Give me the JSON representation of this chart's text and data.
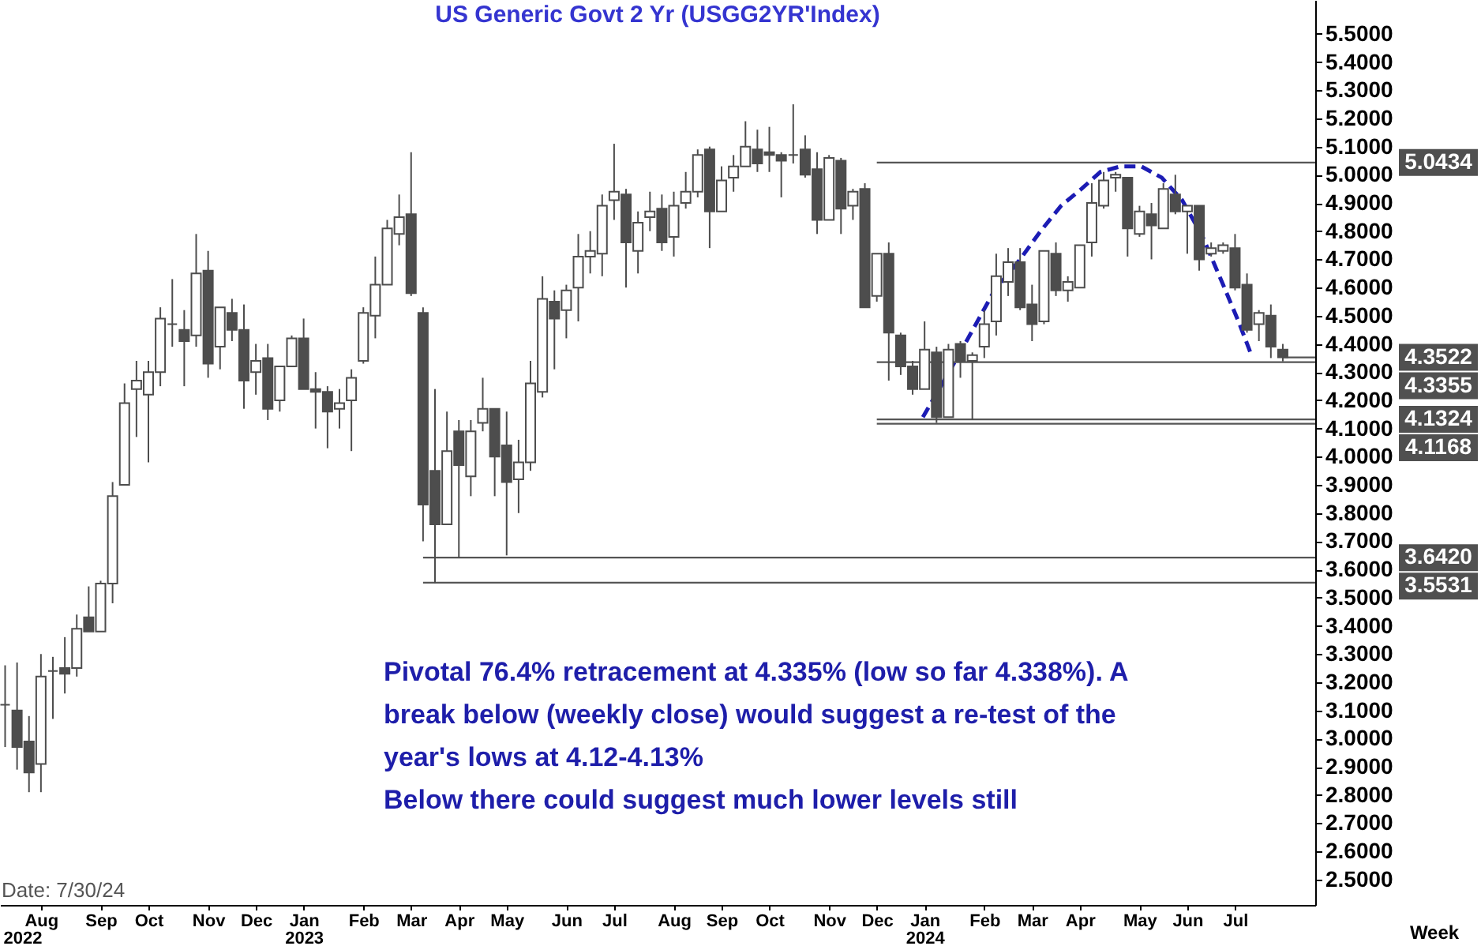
{
  "chart_data": {
    "type": "candlestick",
    "title": "US Generic Govt 2 Yr (USGG2YR'Index)",
    "xlabel": "Week",
    "color": "#4d4d4d",
    "legend": "right",
    "x": [
      "2022-07-11",
      "2022-07-18",
      "2022-07-25",
      "2022-08-01",
      "2022-08-08",
      "2022-08-15",
      "2022-08-22",
      "2022-08-29",
      "2022-09-05",
      "2022-09-12",
      "2022-09-19",
      "2022-09-26",
      "2022-10-03",
      "2022-10-10",
      "2022-10-17",
      "2022-10-24",
      "2022-10-31",
      "2022-11-07",
      "2022-11-14",
      "2022-11-21",
      "2022-11-28",
      "2022-12-05",
      "2022-12-12",
      "2022-12-19",
      "2022-12-26",
      "2023-01-02",
      "2023-01-09",
      "2023-01-16",
      "2023-01-23",
      "2023-01-30",
      "2023-02-06",
      "2023-02-13",
      "2023-02-20",
      "2023-02-27",
      "2023-03-06",
      "2023-03-13",
      "2023-03-20",
      "2023-03-27",
      "2023-04-03",
      "2023-04-10",
      "2023-04-17",
      "2023-04-24",
      "2023-05-01",
      "2023-05-08",
      "2023-05-15",
      "2023-05-22",
      "2023-05-29",
      "2023-06-05",
      "2023-06-12",
      "2023-06-19",
      "2023-06-26",
      "2023-07-03",
      "2023-07-10",
      "2023-07-17",
      "2023-07-24",
      "2023-07-31",
      "2023-08-07",
      "2023-08-14",
      "2023-08-21",
      "2023-08-28",
      "2023-09-04",
      "2023-09-11",
      "2023-09-18",
      "2023-09-25",
      "2023-10-02",
      "2023-10-09",
      "2023-10-16",
      "2023-10-23",
      "2023-10-30",
      "2023-11-06",
      "2023-11-13",
      "2023-11-20",
      "2023-11-27",
      "2023-12-04",
      "2023-12-11",
      "2023-12-18",
      "2023-12-25",
      "2024-01-01",
      "2024-01-08",
      "2024-01-15",
      "2024-01-22",
      "2024-01-29",
      "2024-02-05",
      "2024-02-12",
      "2024-02-19",
      "2024-02-26",
      "2024-03-04",
      "2024-03-11",
      "2024-03-18",
      "2024-03-25",
      "2024-04-01",
      "2024-04-08",
      "2024-04-15",
      "2024-04-22",
      "2024-04-29",
      "2024-05-06",
      "2024-05-13",
      "2024-05-20",
      "2024-05-27",
      "2024-06-03",
      "2024-06-10",
      "2024-06-17",
      "2024-06-24",
      "2024-07-01",
      "2024-07-08",
      "2024-07-15",
      "2024-07-22",
      "2024-07-29"
    ],
    "ohlc": [
      [
        3.12,
        3.26,
        2.97,
        3.12
      ],
      [
        3.1,
        3.27,
        2.89,
        2.97
      ],
      [
        2.99,
        3.08,
        2.81,
        2.88
      ],
      [
        2.91,
        3.3,
        2.81,
        3.22
      ],
      [
        3.24,
        3.29,
        3.07,
        3.24
      ],
      [
        3.25,
        3.36,
        3.16,
        3.23
      ],
      [
        3.25,
        3.44,
        3.22,
        3.39
      ],
      [
        3.43,
        3.54,
        3.38,
        3.38
      ],
      [
        3.38,
        3.56,
        3.38,
        3.55
      ],
      [
        3.55,
        3.91,
        3.48,
        3.86
      ],
      [
        3.9,
        4.26,
        3.9,
        4.19
      ],
      [
        4.24,
        4.34,
        4.07,
        4.27
      ],
      [
        4.22,
        4.34,
        3.98,
        4.3
      ],
      [
        4.3,
        4.53,
        4.25,
        4.49
      ],
      [
        4.47,
        4.63,
        4.39,
        4.47
      ],
      [
        4.45,
        4.52,
        4.25,
        4.41
      ],
      [
        4.43,
        4.79,
        4.39,
        4.65
      ],
      [
        4.66,
        4.73,
        4.28,
        4.33
      ],
      [
        4.39,
        4.53,
        4.31,
        4.53
      ],
      [
        4.51,
        4.56,
        4.41,
        4.45
      ],
      [
        4.45,
        4.54,
        4.17,
        4.27
      ],
      [
        4.3,
        4.4,
        4.22,
        4.34
      ],
      [
        4.35,
        4.4,
        4.13,
        4.17
      ],
      [
        4.2,
        4.32,
        4.16,
        4.32
      ],
      [
        4.32,
        4.43,
        4.32,
        4.42
      ],
      [
        4.42,
        4.49,
        4.24,
        4.24
      ],
      [
        4.24,
        4.3,
        4.1,
        4.23
      ],
      [
        4.23,
        4.25,
        4.03,
        4.16
      ],
      [
        4.17,
        4.24,
        4.1,
        4.19
      ],
      [
        4.2,
        4.31,
        4.02,
        4.28
      ],
      [
        4.34,
        4.53,
        4.33,
        4.51
      ],
      [
        4.5,
        4.71,
        4.42,
        4.61
      ],
      [
        4.61,
        4.84,
        4.61,
        4.81
      ],
      [
        4.79,
        4.93,
        4.75,
        4.85
      ],
      [
        4.86,
        5.08,
        4.57,
        4.58
      ],
      [
        4.51,
        4.53,
        3.7,
        3.83
      ],
      [
        3.95,
        4.24,
        3.55,
        3.76
      ],
      [
        3.76,
        4.16,
        3.76,
        4.02
      ],
      [
        4.09,
        4.13,
        3.64,
        3.97
      ],
      [
        3.93,
        4.13,
        3.86,
        4.09
      ],
      [
        4.12,
        4.28,
        4.09,
        4.17
      ],
      [
        4.17,
        4.17,
        3.86,
        4.0
      ],
      [
        4.04,
        4.16,
        3.65,
        3.91
      ],
      [
        3.92,
        4.06,
        3.8,
        3.98
      ],
      [
        3.98,
        4.34,
        3.95,
        4.26
      ],
      [
        4.23,
        4.64,
        4.21,
        4.56
      ],
      [
        4.55,
        4.59,
        4.31,
        4.49
      ],
      [
        4.52,
        4.61,
        4.42,
        4.59
      ],
      [
        4.6,
        4.79,
        4.48,
        4.71
      ],
      [
        4.71,
        4.8,
        4.65,
        4.73
      ],
      [
        4.72,
        4.93,
        4.64,
        4.89
      ],
      [
        4.91,
        5.11,
        4.84,
        4.94
      ],
      [
        4.93,
        4.95,
        4.6,
        4.76
      ],
      [
        4.73,
        4.87,
        4.65,
        4.83
      ],
      [
        4.85,
        4.94,
        4.8,
        4.87
      ],
      [
        4.88,
        4.93,
        4.73,
        4.76
      ],
      [
        4.78,
        4.94,
        4.71,
        4.89
      ],
      [
        4.9,
        5.01,
        4.88,
        4.94
      ],
      [
        4.94,
        5.09,
        4.92,
        5.07
      ],
      [
        5.09,
        5.1,
        4.74,
        4.87
      ],
      [
        4.87,
        5.03,
        4.87,
        4.98
      ],
      [
        4.99,
        5.07,
        4.94,
        5.03
      ],
      [
        5.03,
        5.19,
        5.03,
        5.1
      ],
      [
        5.09,
        5.16,
        5.01,
        5.04
      ],
      [
        5.08,
        5.17,
        5.01,
        5.07
      ],
      [
        5.07,
        5.08,
        4.92,
        5.05
      ],
      [
        5.07,
        5.25,
        5.04,
        5.07
      ],
      [
        5.09,
        5.14,
        4.99,
        5.0
      ],
      [
        5.02,
        5.08,
        4.79,
        4.84
      ],
      [
        4.84,
        5.07,
        4.84,
        5.06
      ],
      [
        5.05,
        5.06,
        4.79,
        4.88
      ],
      [
        4.89,
        4.95,
        4.84,
        4.94
      ],
      [
        4.95,
        4.97,
        4.53,
        4.53
      ],
      [
        4.57,
        4.72,
        4.55,
        4.72
      ],
      [
        4.72,
        4.76,
        4.27,
        4.44
      ],
      [
        4.43,
        4.44,
        4.29,
        4.32
      ],
      [
        4.32,
        4.34,
        4.22,
        4.24
      ],
      [
        4.24,
        4.48,
        4.24,
        4.38
      ],
      [
        4.37,
        4.39,
        4.12,
        4.14
      ],
      [
        4.14,
        4.4,
        4.14,
        4.38
      ],
      [
        4.4,
        4.41,
        4.28,
        4.34
      ],
      [
        4.34,
        4.37,
        4.13,
        4.36
      ],
      [
        4.39,
        4.52,
        4.35,
        4.47
      ],
      [
        4.48,
        4.72,
        4.43,
        4.64
      ],
      [
        4.62,
        4.74,
        4.57,
        4.69
      ],
      [
        4.69,
        4.74,
        4.52,
        4.53
      ],
      [
        4.54,
        4.61,
        4.41,
        4.47
      ],
      [
        4.48,
        4.73,
        4.47,
        4.73
      ],
      [
        4.72,
        4.76,
        4.57,
        4.59
      ],
      [
        4.59,
        4.64,
        4.55,
        4.62
      ],
      [
        4.6,
        4.75,
        4.6,
        4.75
      ],
      [
        4.76,
        4.97,
        4.71,
        4.9
      ],
      [
        4.89,
        5.01,
        4.88,
        4.98
      ],
      [
        4.99,
        5.01,
        4.94,
        5.0
      ],
      [
        4.99,
        4.99,
        4.71,
        4.81
      ],
      [
        4.79,
        4.89,
        4.78,
        4.87
      ],
      [
        4.86,
        4.9,
        4.7,
        4.82
      ],
      [
        4.81,
        4.97,
        4.81,
        4.95
      ],
      [
        4.93,
        5.0,
        4.86,
        4.87
      ],
      [
        4.87,
        4.89,
        4.72,
        4.89
      ],
      [
        4.89,
        4.89,
        4.66,
        4.7
      ],
      [
        4.72,
        4.76,
        4.71,
        4.74
      ],
      [
        4.73,
        4.76,
        4.72,
        4.75
      ],
      [
        4.74,
        4.79,
        4.59,
        4.6
      ],
      [
        4.61,
        4.65,
        4.44,
        4.45
      ],
      [
        4.47,
        4.52,
        4.41,
        4.51
      ],
      [
        4.5,
        4.54,
        4.35,
        4.39
      ],
      [
        4.38,
        4.4,
        4.338,
        4.3522
      ]
    ],
    "series": [
      {
        "type": "line",
        "line_style": "dashed",
        "color": "#1c1cb4",
        "x": [
          "2023-12-31",
          "2024-01-21",
          "2024-02-11",
          "2024-02-26",
          "2024-03-09",
          "2024-03-21",
          "2024-04-02",
          "2024-04-13",
          "2024-04-25",
          "2024-05-07",
          "2024-05-19",
          "2024-05-31",
          "2024-06-12",
          "2024-06-24",
          "2024-07-03",
          "2024-07-10"
        ],
        "values": [
          4.14,
          4.36,
          4.59,
          4.7,
          4.8,
          4.89,
          4.95,
          5.01,
          5.03,
          5.03,
          4.99,
          4.91,
          4.78,
          4.61,
          4.48,
          4.37
        ]
      },
      {
        "type": "line",
        "name": "5.0434",
        "color": "#555555",
        "x": [
          "2023-12-04",
          "2024-08-17"
        ],
        "values": [
          5.0434,
          5.0434
        ]
      },
      {
        "type": "line",
        "name": "4.3522",
        "color": "#555555",
        "x": [
          "2024-07-29",
          "2024-08-17"
        ],
        "values": [
          4.3522,
          4.3522
        ]
      },
      {
        "type": "line",
        "name": "4.3355",
        "color": "#555555",
        "x": [
          "2023-12-04",
          "2024-08-17"
        ],
        "values": [
          4.3355,
          4.3355
        ]
      },
      {
        "type": "line",
        "name": "4.1324",
        "color": "#555555",
        "x": [
          "2023-12-04",
          "2024-08-17"
        ],
        "values": [
          4.1324,
          4.1324
        ]
      },
      {
        "type": "line",
        "name": "4.1168",
        "color": "#555555",
        "x": [
          "2023-12-04",
          "2024-08-17"
        ],
        "values": [
          4.1168,
          4.1168
        ]
      },
      {
        "type": "line",
        "name": "3.6420",
        "color": "#555555",
        "x": [
          "2023-03-13",
          "2024-08-17"
        ],
        "values": [
          3.642,
          3.642
        ]
      },
      {
        "type": "line",
        "name": "3.5531",
        "color": "#555555",
        "x": [
          "2023-03-13",
          "2024-08-17"
        ],
        "values": [
          3.5531,
          3.5531
        ]
      }
    ],
    "xlim": [
      "2022-07-08",
      "2024-08-17"
    ],
    "ylim": [
      2.41,
      5.62
    ],
    "xticks": [
      {
        "value": "2022-08-01",
        "label": "Aug"
      },
      {
        "value": "2022-09-05",
        "label": "Sep"
      },
      {
        "value": "2022-10-03",
        "label": "Oct"
      },
      {
        "value": "2022-11-07",
        "label": "Nov"
      },
      {
        "value": "2022-12-05",
        "label": "Dec"
      },
      {
        "value": "2023-01-02",
        "label": "Jan"
      },
      {
        "value": "2023-02-06",
        "label": "Feb"
      },
      {
        "value": "2023-03-06",
        "label": "Mar"
      },
      {
        "value": "2023-04-03",
        "label": "Apr"
      },
      {
        "value": "2023-05-01",
        "label": "May"
      },
      {
        "value": "2023-06-05",
        "label": "Jun"
      },
      {
        "value": "2023-07-03",
        "label": "Jul"
      },
      {
        "value": "2023-08-07",
        "label": "Aug"
      },
      {
        "value": "2023-09-04",
        "label": "Sep"
      },
      {
        "value": "2023-10-02",
        "label": "Oct"
      },
      {
        "value": "2023-11-06",
        "label": "Nov"
      },
      {
        "value": "2023-12-04",
        "label": "Dec"
      },
      {
        "value": "2024-01-01",
        "label": "Jan"
      },
      {
        "value": "2024-02-05",
        "label": "Feb"
      },
      {
        "value": "2024-03-04",
        "label": "Mar"
      },
      {
        "value": "2024-04-01",
        "label": "Apr"
      },
      {
        "value": "2024-05-06",
        "label": "May"
      },
      {
        "value": "2024-06-03",
        "label": "Jun"
      },
      {
        "value": "2024-07-01",
        "label": "Jul"
      }
    ],
    "x2lim": [
      "2022-07-08",
      "2024-08-17"
    ],
    "x2ticks": [
      {
        "value": "2022-07-21",
        "label": "2022"
      },
      {
        "value": "2023-01-02",
        "label": "2023"
      },
      {
        "value": "2024-01-01",
        "label": "2024"
      }
    ],
    "yticks": [
      {
        "value": 2.5,
        "label": "2.5000"
      },
      {
        "value": 2.6,
        "label": "2.6000"
      },
      {
        "value": 2.7,
        "label": "2.7000"
      },
      {
        "value": 2.8,
        "label": "2.8000"
      },
      {
        "value": 2.9,
        "label": "2.9000"
      },
      {
        "value": 3.0,
        "label": "3.0000"
      },
      {
        "value": 3.1,
        "label": "3.1000"
      },
      {
        "value": 3.2,
        "label": "3.2000"
      },
      {
        "value": 3.3,
        "label": "3.3000"
      },
      {
        "value": 3.4,
        "label": "3.4000"
      },
      {
        "value": 3.5,
        "label": "3.5000"
      },
      {
        "value": 3.6,
        "label": "3.6000"
      },
      {
        "value": 3.7,
        "label": "3.7000"
      },
      {
        "value": 3.8,
        "label": "3.8000"
      },
      {
        "value": 3.9,
        "label": "3.9000"
      },
      {
        "value": 4.0,
        "label": "4.0000"
      },
      {
        "value": 4.1,
        "label": "4.1000"
      },
      {
        "value": 4.2,
        "label": "4.2000"
      },
      {
        "value": 4.3,
        "label": "4.3000"
      },
      {
        "value": 4.4,
        "label": "4.4000"
      },
      {
        "value": 4.5,
        "label": "4.5000"
      },
      {
        "value": 4.6,
        "label": "4.6000"
      },
      {
        "value": 4.7,
        "label": "4.7000"
      },
      {
        "value": 4.8,
        "label": "4.8000"
      },
      {
        "value": 4.9,
        "label": "4.9000"
      },
      {
        "value": 5.0,
        "label": "5.0000"
      },
      {
        "value": 5.1,
        "label": "5.1000"
      },
      {
        "value": 5.2,
        "label": "5.2000"
      },
      {
        "value": 5.3,
        "label": "5.3000"
      },
      {
        "value": 5.4,
        "label": "5.4000"
      },
      {
        "value": 5.5,
        "label": "5.5000"
      }
    ],
    "annotations": [
      "Pivotal 76.4% retracement at 4.335% (low so far 4.338%). A break below (weekly close) would suggest a re-test of the year's lows at 4.12-4.13%",
      "Below there could suggest much lower levels still",
      "Date: 7/30/24"
    ]
  }
}
